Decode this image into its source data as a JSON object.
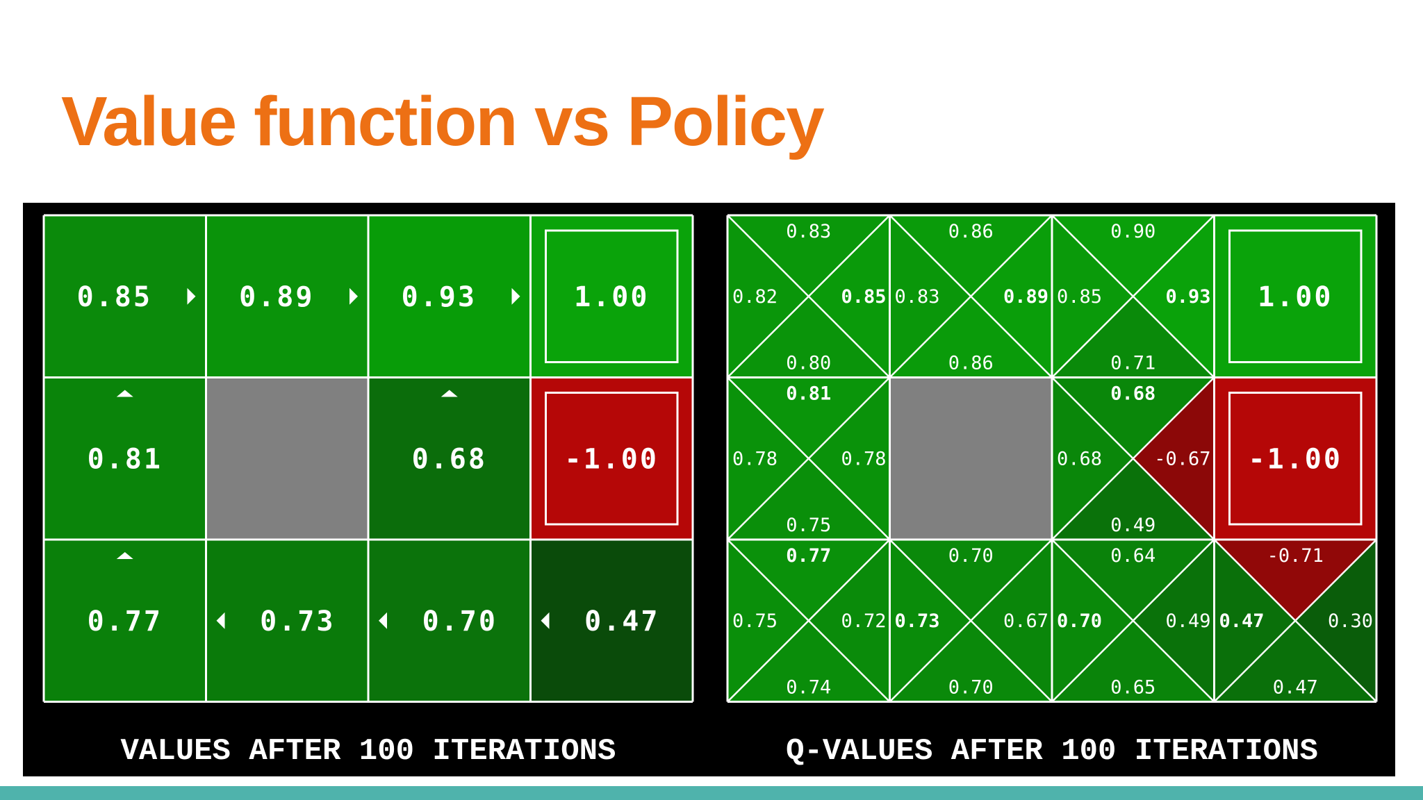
{
  "title": "Value function vs Policy",
  "left_grid": {
    "caption": "VALUES AFTER 100 ITERATIONS",
    "rows": [
      [
        {
          "type": "value",
          "value": "0.85",
          "arrow": "right",
          "color": "#0b8a0b"
        },
        {
          "type": "value",
          "value": "0.89",
          "arrow": "right",
          "color": "#0a930a"
        },
        {
          "type": "value",
          "value": "0.93",
          "arrow": "right",
          "color": "#089c08"
        },
        {
          "type": "terminal",
          "value": "1.00",
          "color": "#0aa30a"
        }
      ],
      [
        {
          "type": "value",
          "value": "0.81",
          "arrow": "up",
          "color": "#0a840a"
        },
        {
          "type": "wall",
          "color": "#808080"
        },
        {
          "type": "value",
          "value": "0.68",
          "arrow": "up",
          "color": "#0b6d0b"
        },
        {
          "type": "terminal",
          "value": "-1.00",
          "color": "#b50707"
        }
      ],
      [
        {
          "type": "value",
          "value": "0.77",
          "arrow": "up",
          "color": "#0a800a"
        },
        {
          "type": "value",
          "value": "0.73",
          "arrow": "left",
          "color": "#0a7a0a"
        },
        {
          "type": "value",
          "value": "0.70",
          "arrow": "left",
          "color": "#0b730b"
        },
        {
          "type": "value",
          "value": "0.47",
          "arrow": "left",
          "color": "#0a4b0a"
        }
      ]
    ]
  },
  "right_grid": {
    "caption": "Q-VALUES AFTER 100 ITERATIONS",
    "rows": [
      [
        {
          "type": "q",
          "n": "0.83",
          "e": "0.85",
          "s": "0.80",
          "w": "0.82",
          "best": "e"
        },
        {
          "type": "q",
          "n": "0.86",
          "e": "0.89",
          "s": "0.86",
          "w": "0.83",
          "best": "e"
        },
        {
          "type": "q",
          "n": "0.90",
          "e": "0.93",
          "s": "0.71",
          "w": "0.85",
          "best": "e"
        },
        {
          "type": "terminal",
          "value": "1.00",
          "color": "#0aa30a"
        }
      ],
      [
        {
          "type": "q",
          "n": "0.81",
          "e": "0.78",
          "s": "0.75",
          "w": "0.78",
          "best": "n"
        },
        {
          "type": "wall",
          "color": "#808080"
        },
        {
          "type": "q",
          "n": "0.68",
          "e": "-0.67",
          "s": "0.49",
          "w": "0.68",
          "best": "n"
        },
        {
          "type": "terminal",
          "value": "-1.00",
          "color": "#b50707"
        }
      ],
      [
        {
          "type": "q",
          "n": "0.77",
          "e": "0.72",
          "s": "0.74",
          "w": "0.75",
          "best": "n"
        },
        {
          "type": "q",
          "n": "0.70",
          "e": "0.67",
          "s": "0.70",
          "w": "0.73",
          "best": "w"
        },
        {
          "type": "q",
          "n": "0.64",
          "e": "0.49",
          "s": "0.65",
          "w": "0.70",
          "best": "w"
        },
        {
          "type": "q",
          "n": "-0.71",
          "e": "0.30",
          "s": "0.47",
          "w": "0.47",
          "best": "w"
        }
      ]
    ]
  }
}
